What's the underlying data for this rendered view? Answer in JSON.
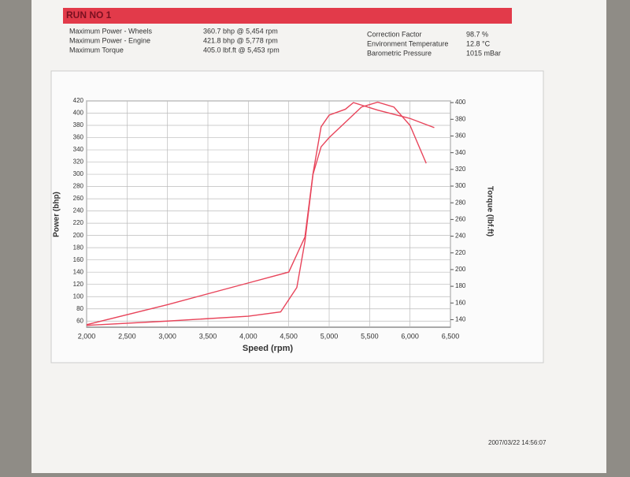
{
  "header": {
    "title": "RUN NO 1",
    "stats": [
      [
        "Maximum Power - Wheels",
        "360.7 bhp @ 5,454 rpm"
      ],
      [
        "Maximum Power - Engine",
        "421.8 bhp @ 5,778 rpm"
      ],
      [
        "Maximum Torque",
        "405.0 lbf.ft @ 5,453 rpm"
      ]
    ],
    "conditions": [
      [
        "Correction Factor",
        "98.7 %"
      ],
      [
        "Environment Temperature",
        "12.8 °C"
      ],
      [
        "Barometric Pressure",
        "1015 mBar"
      ]
    ]
  },
  "chart_data": {
    "type": "line",
    "x_label": "Speed (rpm)",
    "y_label": "Power (bhp)",
    "y2_label": "Torque (lbf.ft)",
    "xlim": [
      2000,
      6500
    ],
    "xticks": [
      {
        "value": 2000,
        "label": "2,000"
      },
      {
        "value": 2500,
        "label": "2,500"
      },
      {
        "value": 3000,
        "label": "3,000"
      },
      {
        "value": 3500,
        "label": "3,500"
      },
      {
        "value": 4000,
        "label": "4,000"
      },
      {
        "value": 4500,
        "label": "4,500"
      },
      {
        "value": 5000,
        "label": "5,000"
      },
      {
        "value": 5500,
        "label": "5,500"
      },
      {
        "value": 6000,
        "label": "6,000"
      },
      {
        "value": 6500,
        "label": "6,500"
      }
    ],
    "ylim": [
      50,
      420
    ],
    "yticks": [
      60,
      80,
      100,
      120,
      140,
      160,
      180,
      200,
      220,
      240,
      260,
      280,
      300,
      320,
      340,
      360,
      380,
      400,
      420
    ],
    "y2lim": [
      131,
      402
    ],
    "y2ticks": [
      140,
      160,
      180,
      200,
      220,
      240,
      260,
      280,
      300,
      320,
      340,
      360,
      380,
      400
    ],
    "grid": true,
    "series": [
      {
        "color": "#e8445a",
        "x": [
          2000,
          3000,
          4000,
          4400,
          4600,
          4700,
          4800,
          4900,
          5000,
          5200,
          5400,
          5600,
          5800,
          6000,
          6200
        ],
        "values": [
          53,
          60,
          68,
          75,
          115,
          190,
          300,
          345,
          360,
          385,
          410,
          418,
          410,
          380,
          318
        ]
      },
      {
        "color": "#e8445a",
        "axis": "y2",
        "x": [
          2000,
          3000,
          4000,
          4500,
          4700,
          4800,
          4900,
          5000,
          5200,
          5300,
          5600,
          6000,
          6300
        ],
        "values": [
          134,
          158,
          184,
          197,
          239,
          315,
          371,
          385,
          392,
          400,
          391,
          381,
          370
        ]
      }
    ]
  },
  "footer": {
    "timestamp": "2007/03/22 14:56:07"
  }
}
